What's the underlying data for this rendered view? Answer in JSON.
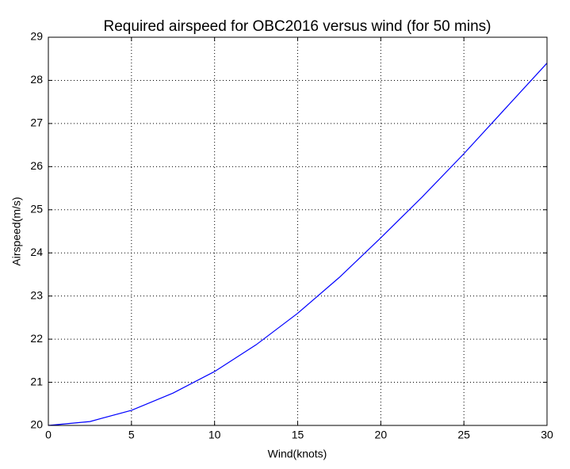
{
  "chart_data": {
    "type": "line",
    "title": "Required airspeed for OBC2016 versus wind (for 50 mins)",
    "x_label": "Wind(knots)",
    "y_label": "Airspeed(m/s)",
    "x": [
      0,
      2.5,
      5,
      7.5,
      10,
      12.5,
      15,
      17.5,
      20,
      22.5,
      25,
      27.5,
      30
    ],
    "values": [
      20.0,
      20.09,
      20.35,
      20.75,
      21.25,
      21.87,
      22.6,
      23.43,
      24.35,
      25.3,
      26.3,
      27.35,
      28.4
    ],
    "color": "#0000ff",
    "xlim": [
      0,
      30
    ],
    "xticks": [
      0,
      5,
      10,
      15,
      20,
      25,
      30
    ],
    "ylim": [
      20,
      29
    ],
    "yticks": [
      20,
      21,
      22,
      23,
      24,
      25,
      26,
      27,
      28,
      29
    ],
    "grid": true
  }
}
